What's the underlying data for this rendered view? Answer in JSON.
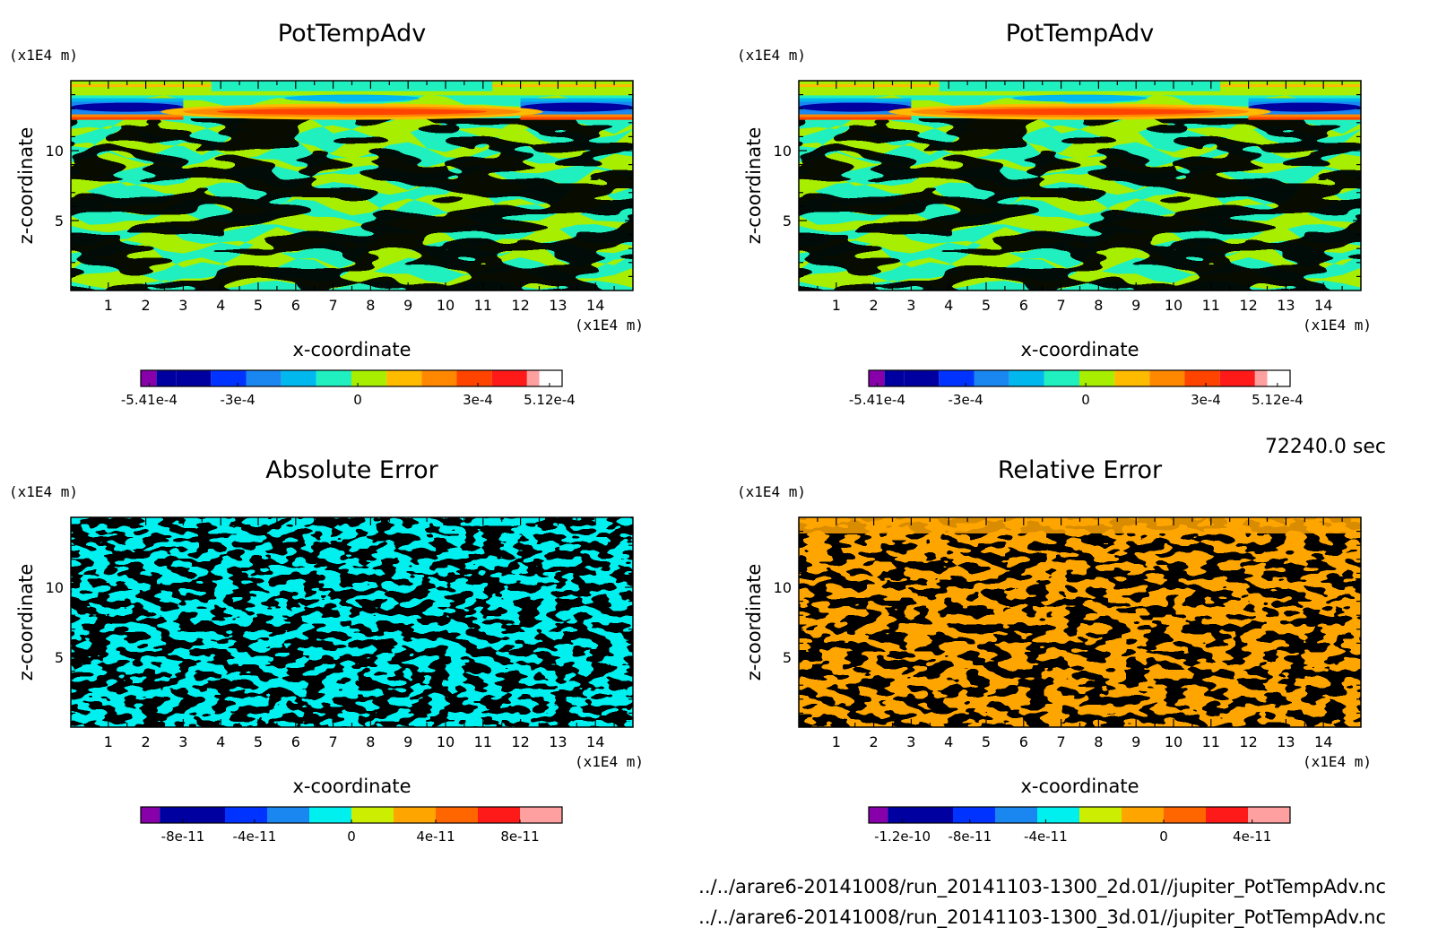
{
  "time_label": "72240.0 sec",
  "file_lines": [
    "../../arare6-20141008/run_20141103-1300_2d.01//jupiter_PotTempAdv.nc",
    "../../arare6-20141008/run_20141103-1300_3d.01//jupiter_PotTempAdv.nc"
  ],
  "colormap_colors": [
    "#8800aa",
    "#0000a0",
    "#0033ff",
    "#1a86f0",
    "#00b7ee",
    "#20f0c0",
    "#a8ee00",
    "#ffbb00",
    "#ff8800",
    "#ff4400",
    "#ff1a1a",
    "#ffa0a0"
  ],
  "chart_data": [
    {
      "type": "heatmap",
      "title": "PotTempAdv",
      "xlabel": "x-coordinate",
      "ylabel": "z-coordinate",
      "x_unit": "(x1E4 m)",
      "y_unit": "(x1E4 m)",
      "xlim": [
        0,
        15
      ],
      "ylim": [
        0,
        15
      ],
      "x_ticks": [
        1,
        2,
        3,
        4,
        5,
        6,
        7,
        8,
        9,
        10,
        11,
        12,
        13,
        14
      ],
      "y_ticks": [
        5,
        10
      ],
      "colorbar": {
        "tick_labels": [
          "-5.41e-4",
          "-3e-4",
          "0",
          "3e-4",
          "5.12e-4"
        ],
        "colors": [
          "#8800aa",
          "#0000a0",
          "#0033ff",
          "#1a86f0",
          "#00b7ee",
          "#20f0c0",
          "#a8ee00",
          "#ffbb00",
          "#ff8800",
          "#ff4400",
          "#ff1a1a",
          "#ffa0a0"
        ]
      }
    },
    {
      "type": "heatmap",
      "title": "PotTempAdv",
      "xlabel": "x-coordinate",
      "ylabel": "z-coordinate",
      "x_unit": "(x1E4 m)",
      "y_unit": "(x1E4 m)",
      "xlim": [
        0,
        15
      ],
      "ylim": [
        0,
        15
      ],
      "x_ticks": [
        1,
        2,
        3,
        4,
        5,
        6,
        7,
        8,
        9,
        10,
        11,
        12,
        13,
        14
      ],
      "y_ticks": [
        5,
        10
      ],
      "colorbar": {
        "tick_labels": [
          "-5.41e-4",
          "-3e-4",
          "0",
          "3e-4",
          "5.12e-4"
        ],
        "colors": [
          "#8800aa",
          "#0000a0",
          "#0033ff",
          "#1a86f0",
          "#00b7ee",
          "#20f0c0",
          "#a8ee00",
          "#ffbb00",
          "#ff8800",
          "#ff4400",
          "#ff1a1a",
          "#ffa0a0"
        ]
      }
    },
    {
      "type": "heatmap",
      "title": "Absolute Error",
      "xlabel": "x-coordinate",
      "ylabel": "z-coordinate",
      "x_unit": "(x1E4 m)",
      "y_unit": "(x1E4 m)",
      "xlim": [
        0,
        15
      ],
      "ylim": [
        0,
        15
      ],
      "x_ticks": [
        1,
        2,
        3,
        4,
        5,
        6,
        7,
        8,
        9,
        10,
        11,
        12,
        13,
        14
      ],
      "y_ticks": [
        5,
        10
      ],
      "colorbar": {
        "tick_labels": [
          "-8e-11",
          "-4e-11",
          "0",
          "4e-11",
          "8e-11"
        ],
        "colors": [
          "#8800aa",
          "#0000a0",
          "#0033ff",
          "#1a86f0",
          "#00f0f0",
          "#ccee00",
          "#ffa500",
          "#ff6600",
          "#ff1a1a",
          "#ffa0a0"
        ]
      }
    },
    {
      "type": "heatmap",
      "title": "Relative Error",
      "xlabel": "x-coordinate",
      "ylabel": "z-coordinate",
      "x_unit": "(x1E4 m)",
      "y_unit": "(x1E4 m)",
      "xlim": [
        0,
        15
      ],
      "ylim": [
        0,
        15
      ],
      "x_ticks": [
        1,
        2,
        3,
        4,
        5,
        6,
        7,
        8,
        9,
        10,
        11,
        12,
        13,
        14
      ],
      "y_ticks": [
        5,
        10
      ],
      "colorbar": {
        "tick_labels": [
          "-1.2e-10",
          "-8e-11",
          "-4e-11",
          "0",
          "4e-11"
        ],
        "colors": [
          "#8800aa",
          "#0000a0",
          "#0033ff",
          "#1a86f0",
          "#00f0f0",
          "#ccee00",
          "#ffa500",
          "#ff6600",
          "#ff1a1a",
          "#ffa0a0"
        ]
      }
    }
  ]
}
